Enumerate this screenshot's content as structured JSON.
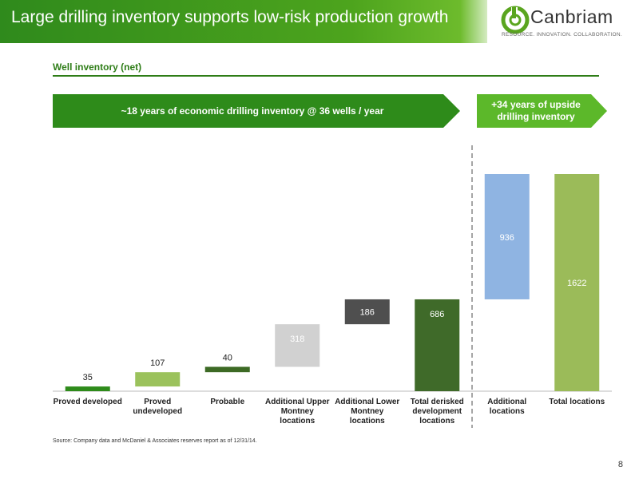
{
  "header": {
    "title": "Large drilling inventory supports low-risk production growth",
    "logo_name": "Canbriam",
    "logo_tagline": "RESOURCE. INNOVATION. COLLABORATION."
  },
  "section_title": "Well inventory (net)",
  "banner_left": "~18 years of economic drilling inventory @ 36 wells / year",
  "banner_right_line1": "+34 years of upside",
  "banner_right_line2": "drilling inventory",
  "chart_data": {
    "type": "bar",
    "subtype": "waterfall",
    "categories": [
      [
        "Proved developed"
      ],
      [
        "Proved",
        "undeveloped"
      ],
      [
        "Probable"
      ],
      [
        "Additional Upper",
        "Montney",
        "locations"
      ],
      [
        "Additional Lower",
        "Montney",
        "locations"
      ],
      [
        "Total derisked",
        "development",
        "locations"
      ],
      [
        "Additional",
        "locations"
      ],
      [
        "Total locations"
      ]
    ],
    "values": [
      35,
      107,
      40,
      318,
      186,
      686,
      936,
      1622
    ],
    "value_labels": [
      "35",
      "107",
      "40",
      "318",
      "186",
      "686",
      "936",
      "1622"
    ],
    "bar_kinds": [
      "step",
      "step",
      "step",
      "step",
      "step",
      "total",
      "step",
      "total"
    ],
    "colors": [
      "#2e8b1a",
      "#9bc25c",
      "#3d6a25",
      "#d1d1d1",
      "#4f4f4f",
      "#3f6a29",
      "#8fb4e2",
      "#9bbb59"
    ],
    "label_colors": [
      "#222222",
      "#222222",
      "#222222",
      "#ffffff",
      "#ffffff",
      "#ffffff",
      "#ffffff",
      "#ffffff"
    ],
    "label_position": [
      "above",
      "above",
      "above",
      "inside",
      "inside",
      "inside",
      "inside",
      "inside"
    ],
    "divider_after_index": 5,
    "ylim": [
      0,
      1622
    ],
    "grid": false,
    "legend": "none"
  },
  "source": "Source: Company data and McDaniel & Associates reserves report  as of 12/31/14.",
  "page_number": "8"
}
